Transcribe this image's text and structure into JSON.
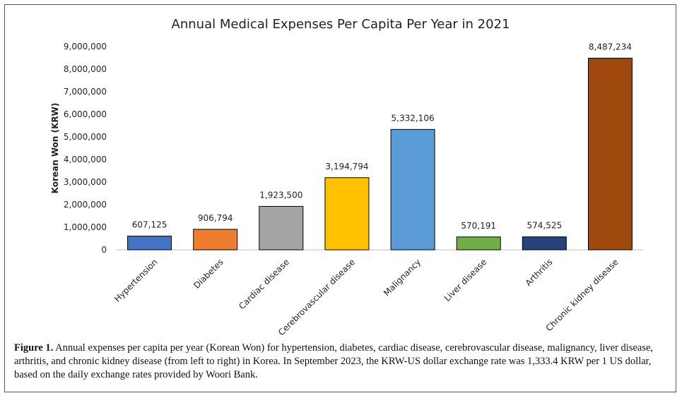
{
  "chart_data": {
    "type": "bar",
    "title": "Annual Medical Expenses Per Capita Per Year in 2021",
    "xlabel": "",
    "ylabel": "Korean Won (KRW)",
    "ylim": [
      0,
      9000000
    ],
    "yticks": [
      "0",
      "1,000,000",
      "2,000,000",
      "3,000,000",
      "4,000,000",
      "5,000,000",
      "6,000,000",
      "7,000,000",
      "8,000,000",
      "9,000,000"
    ],
    "categories": [
      "Hypertension",
      "Diabetes",
      "Cardiac disease",
      "Cerebrovascular disease",
      "Malignancy",
      "Liver disease",
      "Arthritis",
      "Chronic kidney disease"
    ],
    "values": [
      607125,
      906794,
      1923500,
      3194794,
      5332106,
      570191,
      574525,
      8487234
    ],
    "value_labels": [
      "607,125",
      "906,794",
      "1,923,500",
      "3,194,794",
      "5,332,106",
      "570,191",
      "574,525",
      "8,487,234"
    ],
    "colors": [
      "#4472C4",
      "#ED7D31",
      "#A5A5A5",
      "#FFC000",
      "#5B9BD5",
      "#70AD47",
      "#264478",
      "#9E480E"
    ],
    "grid": false,
    "legend": "none"
  },
  "caption": {
    "label": "Figure 1.",
    "text": " Annual expenses per capita per year (Korean Won) for hypertension, diabetes, cardiac disease, cerebrovascular disease, malignancy, liver disease, arthritis, and chronic kidney disease (from left to right) in Korea. In September 2023, the KRW-US dollar exchange rate was 1,333.4 KRW per 1 US dollar, based on the daily exchange rates provided by Woori Bank."
  }
}
